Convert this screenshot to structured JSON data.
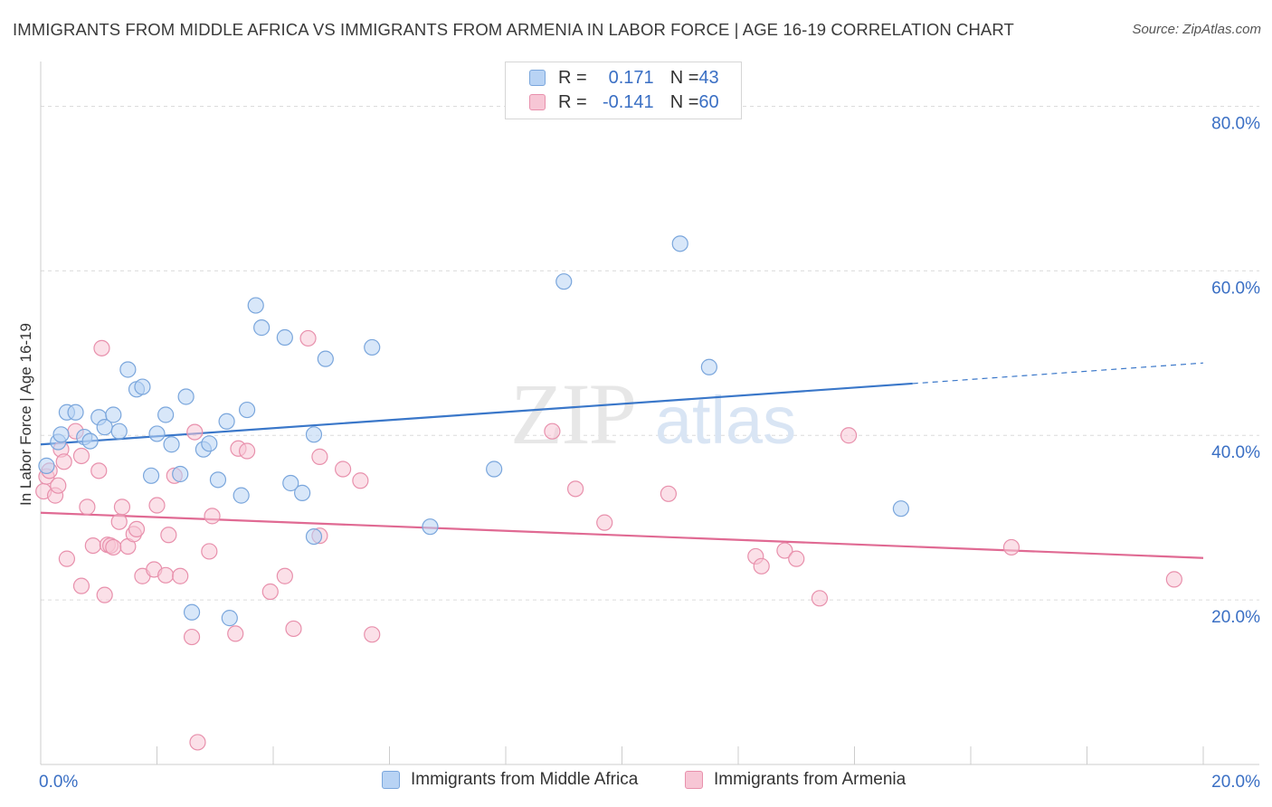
{
  "title": "IMMIGRANTS FROM MIDDLE AFRICA VS IMMIGRANTS FROM ARMENIA IN LABOR FORCE | AGE 16-19 CORRELATION CHART",
  "source": "Source: ZipAtlas.com",
  "watermark": {
    "zip": "ZIP",
    "atlas": "atlas"
  },
  "legend_stats": [
    {
      "r_label": "R = ",
      "r_value": "0.171",
      "n_label": "N = ",
      "n_value": "43"
    },
    {
      "r_label": "R = ",
      "r_value": "-0.141",
      "n_label": "N = ",
      "n_value": "60"
    }
  ],
  "colors": {
    "blue_fill": "#b8d3f4",
    "blue_stroke": "#7aa6dc",
    "blue_line": "#3a77c9",
    "pink_fill": "#f7c6d5",
    "pink_stroke": "#e890ac",
    "pink_line": "#e06a93",
    "grid": "#dcdcdc",
    "tick_label": "#3a6fc4"
  },
  "chart_data": {
    "type": "scatter",
    "title": "IMMIGRANTS FROM MIDDLE AFRICA VS IMMIGRANTS FROM ARMENIA IN LABOR FORCE | AGE 16-19 CORRELATION CHART",
    "xlabel": "",
    "ylabel": "In Labor Force | Age 16-19",
    "xlim": [
      0,
      20
    ],
    "ylim": [
      0,
      85
    ],
    "x_tick_labels": [
      "0.0%",
      "20.0%"
    ],
    "y_ticks": [
      20,
      40,
      60,
      80
    ],
    "y_tick_labels": [
      "20.0%",
      "40.0%",
      "60.0%",
      "80.0%"
    ],
    "grid": true,
    "legend_position": "top-center",
    "series": [
      {
        "name": "Immigrants from Middle Africa",
        "color": "#7aa6dc",
        "points": [
          [
            0.1,
            36.3
          ],
          [
            0.3,
            39.2
          ],
          [
            0.35,
            40.1
          ],
          [
            0.45,
            42.8
          ],
          [
            0.6,
            42.8
          ],
          [
            0.75,
            39.8
          ],
          [
            0.85,
            39.3
          ],
          [
            1.0,
            42.2
          ],
          [
            1.1,
            41.0
          ],
          [
            1.25,
            42.5
          ],
          [
            1.35,
            40.5
          ],
          [
            1.5,
            48.0
          ],
          [
            1.65,
            45.6
          ],
          [
            1.75,
            45.9
          ],
          [
            1.9,
            35.1
          ],
          [
            2.0,
            40.2
          ],
          [
            2.15,
            42.5
          ],
          [
            2.25,
            38.9
          ],
          [
            2.4,
            35.3
          ],
          [
            2.5,
            44.7
          ],
          [
            2.6,
            18.5
          ],
          [
            2.8,
            38.3
          ],
          [
            2.9,
            39.0
          ],
          [
            3.05,
            34.6
          ],
          [
            3.2,
            41.7
          ],
          [
            3.25,
            17.8
          ],
          [
            3.45,
            32.7
          ],
          [
            3.55,
            43.1
          ],
          [
            3.7,
            55.8
          ],
          [
            3.8,
            53.1
          ],
          [
            4.2,
            51.9
          ],
          [
            4.3,
            34.2
          ],
          [
            4.5,
            33.0
          ],
          [
            4.7,
            27.7
          ],
          [
            4.7,
            40.1
          ],
          [
            4.9,
            49.3
          ],
          [
            5.7,
            50.7
          ],
          [
            6.7,
            28.9
          ],
          [
            7.8,
            35.9
          ],
          [
            9.0,
            58.7
          ],
          [
            11.0,
            63.3
          ],
          [
            11.5,
            48.3
          ],
          [
            14.8,
            31.1
          ]
        ],
        "trend": {
          "x": [
            0,
            15.0
          ],
          "y": [
            38.9,
            46.3
          ],
          "dashed_x": [
            15.0,
            20.0
          ],
          "dashed_y": [
            46.3,
            48.8
          ]
        }
      },
      {
        "name": "Immigrants from Armenia",
        "color": "#e890ac",
        "points": [
          [
            0.05,
            33.2
          ],
          [
            0.1,
            35.0
          ],
          [
            0.15,
            35.7
          ],
          [
            0.25,
            32.7
          ],
          [
            0.3,
            33.9
          ],
          [
            0.35,
            38.3
          ],
          [
            0.4,
            36.8
          ],
          [
            0.45,
            25.0
          ],
          [
            0.6,
            40.5
          ],
          [
            0.7,
            37.5
          ],
          [
            0.7,
            21.7
          ],
          [
            0.8,
            31.3
          ],
          [
            0.9,
            26.6
          ],
          [
            1.0,
            35.7
          ],
          [
            1.05,
            50.6
          ],
          [
            1.1,
            20.6
          ],
          [
            1.15,
            26.7
          ],
          [
            1.2,
            26.6
          ],
          [
            1.25,
            26.4
          ],
          [
            1.35,
            29.5
          ],
          [
            1.4,
            31.3
          ],
          [
            1.5,
            26.5
          ],
          [
            1.6,
            28.0
          ],
          [
            1.65,
            28.6
          ],
          [
            1.75,
            22.9
          ],
          [
            1.95,
            23.7
          ],
          [
            2.0,
            31.5
          ],
          [
            2.15,
            23.0
          ],
          [
            2.2,
            27.9
          ],
          [
            2.3,
            35.1
          ],
          [
            2.4,
            22.9
          ],
          [
            2.6,
            15.5
          ],
          [
            2.65,
            40.4
          ],
          [
            2.7,
            2.7
          ],
          [
            2.9,
            25.9
          ],
          [
            2.95,
            30.2
          ],
          [
            3.35,
            15.9
          ],
          [
            3.4,
            38.4
          ],
          [
            3.55,
            38.1
          ],
          [
            3.95,
            21.0
          ],
          [
            4.2,
            22.9
          ],
          [
            4.35,
            16.5
          ],
          [
            4.6,
            51.8
          ],
          [
            4.8,
            37.4
          ],
          [
            4.8,
            27.8
          ],
          [
            5.2,
            35.9
          ],
          [
            5.5,
            34.5
          ],
          [
            5.7,
            15.8
          ],
          [
            8.8,
            40.5
          ],
          [
            9.2,
            33.5
          ],
          [
            9.7,
            29.4
          ],
          [
            10.8,
            32.9
          ],
          [
            12.3,
            25.3
          ],
          [
            12.4,
            24.1
          ],
          [
            12.8,
            26.0
          ],
          [
            13.0,
            25.0
          ],
          [
            13.4,
            20.2
          ],
          [
            13.9,
            40.0
          ],
          [
            16.7,
            26.4
          ],
          [
            19.5,
            22.5
          ]
        ],
        "trend": {
          "x": [
            0,
            20.0
          ],
          "y": [
            30.6,
            25.1
          ]
        }
      }
    ]
  }
}
